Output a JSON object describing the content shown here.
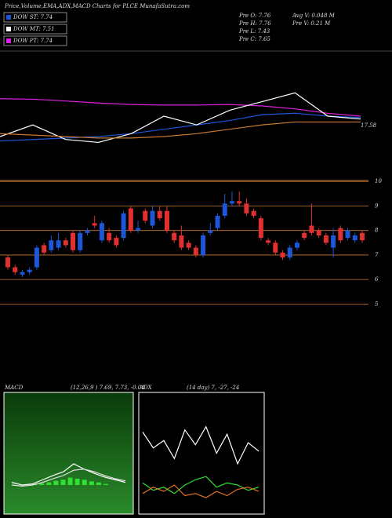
{
  "chart_data": [
    {
      "type": "header",
      "title": "Price,Volume,EMA,ADX,MACD Charts for PLCE MunafaSutra.com",
      "legend": [
        {
          "name": "DOW ST: 7.74",
          "color": "#1e56d8"
        },
        {
          "name": "DOW MT: 7.51",
          "color": "#ffffff"
        },
        {
          "name": "DOW PT: 7.74",
          "color": "#e020e0"
        }
      ],
      "info": [
        "Pre  O: 7.76",
        "Pre  H: 7.76",
        "Pre  L: 7.43",
        "Pre  C: 7.65",
        "Avg V: 0.048  M",
        "Pre  V: 0.21 M"
      ]
    },
    {
      "type": "line",
      "label": "17.58",
      "ylim": [
        16.5,
        20
      ],
      "series": [
        {
          "name": "PT",
          "color": "#e020e0",
          "values": [
            18.5,
            18.48,
            18.42,
            18.35,
            18.3,
            18.28,
            18.28,
            18.3,
            18.25,
            18.15,
            18.0,
            17.9
          ]
        },
        {
          "name": "ST",
          "color": "#1e56d8",
          "values": [
            17.05,
            17.1,
            17.15,
            17.2,
            17.3,
            17.45,
            17.6,
            17.75,
            17.95,
            18.0,
            17.9,
            17.85
          ]
        },
        {
          "name": "MT",
          "color": "#ffffff",
          "values": [
            17.2,
            17.6,
            17.1,
            17.0,
            17.3,
            17.9,
            17.6,
            18.1,
            18.4,
            18.7,
            17.9,
            17.8
          ]
        },
        {
          "name": "EMA",
          "color": "#c87830",
          "values": [
            17.3,
            17.25,
            17.2,
            17.15,
            17.15,
            17.2,
            17.3,
            17.45,
            17.6,
            17.7,
            17.7,
            17.7
          ]
        }
      ]
    },
    {
      "type": "candlestick",
      "ylim": [
        4.5,
        10.2
      ],
      "yticks": [
        10,
        9,
        8,
        7,
        6,
        5
      ],
      "up_color": "#1e56d8",
      "down_color": "#e03030",
      "grid": true,
      "open": [
        6.9,
        6.5,
        6.2,
        6.3,
        6.5,
        7.4,
        7.2,
        7.3,
        7.6,
        7.9,
        7.2,
        7.9,
        8.3,
        7.6,
        7.9,
        7.7,
        7.7,
        8.9,
        8.0,
        8.8,
        8.2,
        8.8,
        8.8,
        7.9,
        7.8,
        7.5,
        7.3,
        7.0,
        7.9,
        8.1,
        8.6,
        9.1,
        9.2,
        9.1,
        8.8,
        8.5,
        7.6,
        7.5,
        7.1,
        6.9,
        7.3,
        7.9,
        8.2,
        8.0,
        7.8,
        7.3,
        8.1,
        7.7,
        7.6,
        7.9
      ],
      "high": [
        7.0,
        6.6,
        6.4,
        6.5,
        7.4,
        7.5,
        7.8,
        7.9,
        7.7,
        8.0,
        8.0,
        8.1,
        8.6,
        8.4,
        8.1,
        7.8,
        8.8,
        9.0,
        8.4,
        8.9,
        9.0,
        9.0,
        9.0,
        8.0,
        8.2,
        7.6,
        7.4,
        7.9,
        8.3,
        8.7,
        9.5,
        9.6,
        9.6,
        9.3,
        8.9,
        8.6,
        7.7,
        7.6,
        7.2,
        7.4,
        7.6,
        8.0,
        9.1,
        8.1,
        7.9,
        8.1,
        8.2,
        8.1,
        7.9,
        8.0
      ],
      "low": [
        6.4,
        6.2,
        6.1,
        6.2,
        6.4,
        7.0,
        7.1,
        7.2,
        7.3,
        7.1,
        7.1,
        7.8,
        8.1,
        7.5,
        7.5,
        7.3,
        7.6,
        7.9,
        7.9,
        8.3,
        8.1,
        8.4,
        7.9,
        7.5,
        7.2,
        7.2,
        6.9,
        6.9,
        7.8,
        8.0,
        8.5,
        9.0,
        9.0,
        8.6,
        8.5,
        7.6,
        7.4,
        7.0,
        6.8,
        6.8,
        7.2,
        7.6,
        7.8,
        7.7,
        7.4,
        6.9,
        7.5,
        7.6,
        7.5,
        7.5
      ],
      "close": [
        6.5,
        6.3,
        6.3,
        6.4,
        7.3,
        7.1,
        7.6,
        7.6,
        7.4,
        7.2,
        7.9,
        8.0,
        8.2,
        8.3,
        7.6,
        7.4,
        8.7,
        8.0,
        8.1,
        8.4,
        8.8,
        8.5,
        8.0,
        7.6,
        7.3,
        7.3,
        7.0,
        7.8,
        8.0,
        8.6,
        9.1,
        9.2,
        9.1,
        8.7,
        8.6,
        7.7,
        7.5,
        7.1,
        6.9,
        7.3,
        7.5,
        7.7,
        7.9,
        7.8,
        7.5,
        7.8,
        7.6,
        8.0,
        7.8,
        7.6
      ]
    },
    {
      "type": "macd",
      "label": "MACD",
      "params": "(12,26,9 ) 7.69, 7.73, -0.04",
      "ylim": [
        -1,
        1
      ],
      "series": [
        {
          "name": "MACD",
          "color": "#ffffff",
          "values": [
            -0.55,
            -0.6,
            -0.58,
            -0.5,
            -0.42,
            -0.35,
            -0.2,
            -0.3,
            -0.38,
            -0.45,
            -0.5,
            -0.55
          ]
        },
        {
          "name": "Signal",
          "color": "#dddddd",
          "values": [
            -0.6,
            -0.62,
            -0.6,
            -0.55,
            -0.48,
            -0.42,
            -0.32,
            -0.3,
            -0.35,
            -0.42,
            -0.48,
            -0.52
          ]
        }
      ],
      "histogram": {
        "color": "#30e030",
        "values": [
          0.0,
          0.02,
          0.03,
          0.05,
          0.08,
          0.1,
          0.14,
          0.12,
          0.1,
          0.07,
          0.05,
          0.02
        ]
      }
    },
    {
      "type": "adx",
      "label": "ADX",
      "params": "(14  day) 7, -27, -24",
      "ylim": [
        0,
        100
      ],
      "series": [
        {
          "name": "ADX",
          "color": "#ffffff",
          "values": [
            70,
            55,
            62,
            45,
            72,
            58,
            75,
            50,
            68,
            40,
            60,
            52
          ]
        },
        {
          "name": "+DI",
          "color": "#30e030",
          "values": [
            22,
            15,
            18,
            12,
            20,
            25,
            28,
            18,
            22,
            20,
            15,
            18
          ]
        },
        {
          "name": "-DI",
          "color": "#e07020",
          "values": [
            12,
            18,
            14,
            20,
            10,
            12,
            8,
            14,
            10,
            16,
            18,
            14
          ]
        }
      ]
    }
  ]
}
